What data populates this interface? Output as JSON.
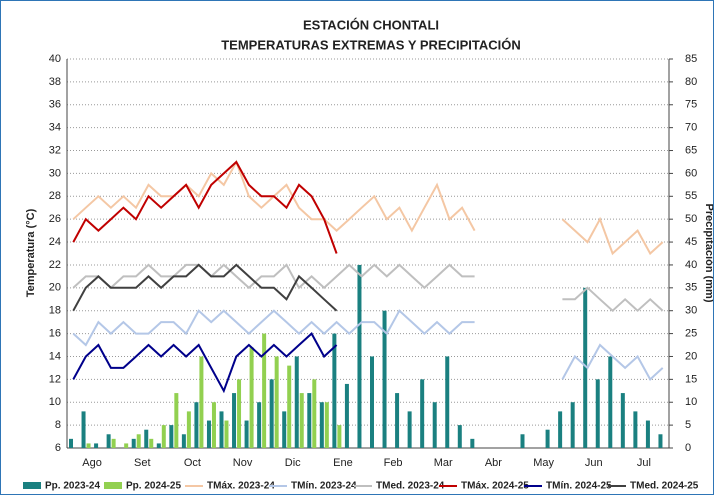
{
  "chart_data": {
    "type": "combo",
    "title": "ESTACIÓN CHONTALI",
    "subtitle": "TEMPERATURAS EXTREMAS Y PRECIPITACIÓN",
    "y_label": "Temperatura (°C)",
    "y2_label": "Precipitación (mm)",
    "categories": [
      "Ago",
      null,
      null,
      null,
      "Set",
      null,
      null,
      null,
      "Oct",
      null,
      null,
      null,
      "Nov",
      null,
      null,
      null,
      "Dic",
      null,
      null,
      null,
      "Ene",
      null,
      null,
      null,
      "Feb",
      null,
      null,
      null,
      "Mar",
      null,
      null,
      null,
      "Abr",
      null,
      null,
      null,
      "May",
      null,
      null,
      null,
      "Jun",
      null,
      null,
      null,
      "Jul",
      null,
      null,
      null
    ],
    "ylim": [
      6,
      40
    ],
    "yticks": [
      6,
      8,
      10,
      12,
      14,
      16,
      18,
      20,
      22,
      24,
      26,
      28,
      30,
      32,
      34,
      36,
      38,
      40
    ],
    "y2lim": [
      0,
      85
    ],
    "y2ticks": [
      0,
      5,
      10,
      15,
      20,
      25,
      30,
      35,
      40,
      45,
      50,
      55,
      60,
      65,
      70,
      75,
      80,
      85
    ],
    "grid": true,
    "series": [
      {
        "name": "Pp. 2023-24",
        "kind": "bar",
        "axis": "y2",
        "color": "#1a8080",
        "values": [
          2,
          8,
          1,
          3,
          0,
          2,
          4,
          1,
          5,
          3,
          10,
          6,
          8,
          12,
          6,
          10,
          15,
          8,
          20,
          12,
          10,
          25,
          14,
          40,
          20,
          30,
          12,
          8,
          15,
          10,
          20,
          5,
          2,
          0,
          0,
          0,
          3,
          0,
          4,
          8,
          10,
          35,
          15,
          20,
          12,
          8,
          6,
          3
        ]
      },
      {
        "name": "Pp. 2024-25",
        "kind": "bar",
        "axis": "y2",
        "color": "#92d050",
        "values": [
          0,
          1,
          0,
          2,
          1,
          3,
          2,
          5,
          12,
          8,
          20,
          10,
          6,
          15,
          22,
          25,
          20,
          18,
          12,
          15,
          10,
          5,
          null,
          null,
          null,
          null,
          null,
          null,
          null,
          null,
          null,
          null,
          null,
          null,
          null,
          null,
          null,
          null,
          null,
          null,
          null,
          null,
          null,
          null,
          null,
          null,
          null,
          null
        ]
      },
      {
        "name": "TMáx. 2023-24",
        "kind": "line",
        "color": "#f4c7a4",
        "values": [
          26,
          27,
          28,
          27,
          28,
          27,
          29,
          28,
          28,
          29,
          28,
          30,
          29,
          31,
          28,
          27,
          28,
          29,
          27,
          26,
          26,
          25,
          26,
          27,
          28,
          26,
          27,
          25,
          27,
          29,
          26,
          27,
          25,
          null,
          null,
          null,
          null,
          null,
          null,
          26,
          25,
          24,
          26,
          23,
          24,
          25,
          23,
          24
        ]
      },
      {
        "name": "TMín. 2023-24",
        "kind": "line",
        "color": "#b4c7e7",
        "values": [
          16,
          15,
          17,
          16,
          17,
          16,
          16,
          17,
          17,
          16,
          18,
          17,
          18,
          17,
          16,
          17,
          18,
          17,
          16,
          17,
          16,
          17,
          16,
          17,
          17,
          16,
          18,
          17,
          16,
          17,
          16,
          17,
          17,
          null,
          null,
          null,
          null,
          null,
          null,
          12,
          14,
          13,
          15,
          14,
          13,
          14,
          12,
          13
        ]
      },
      {
        "name": "TMed. 2023-24",
        "kind": "line",
        "color": "#bfbfbf",
        "values": [
          20,
          21,
          21,
          20,
          21,
          21,
          22,
          21,
          21,
          22,
          22,
          21,
          22,
          21,
          20,
          21,
          21,
          22,
          20,
          21,
          20,
          21,
          22,
          21,
          22,
          21,
          22,
          21,
          20,
          21,
          22,
          21,
          21,
          null,
          null,
          null,
          null,
          null,
          null,
          19,
          19,
          20,
          19,
          18,
          19,
          18,
          19,
          18
        ]
      },
      {
        "name": "TMáx. 2024-25",
        "kind": "line",
        "color": "#c00000",
        "values": [
          24,
          26,
          25,
          26,
          27,
          26,
          28,
          27,
          28,
          29,
          27,
          29,
          30,
          31,
          29,
          28,
          28,
          27,
          29,
          28,
          26,
          23,
          null,
          null,
          null,
          null,
          null,
          null,
          null,
          null,
          null,
          null,
          null,
          null,
          null,
          null,
          null,
          null,
          null,
          null,
          null,
          null,
          null,
          null,
          null,
          null,
          null,
          null
        ]
      },
      {
        "name": "TMín. 2024-25",
        "kind": "line",
        "color": "#00008b",
        "values": [
          12,
          14,
          15,
          13,
          13,
          14,
          15,
          14,
          15,
          14,
          15,
          13,
          11,
          14,
          15,
          14,
          15,
          14,
          15,
          16,
          14,
          15,
          null,
          null,
          null,
          null,
          null,
          null,
          null,
          null,
          null,
          null,
          null,
          null,
          null,
          null,
          null,
          null,
          null,
          null,
          null,
          null,
          null,
          null,
          null,
          null,
          null,
          null
        ]
      },
      {
        "name": "TMed. 2024-25",
        "kind": "line",
        "color": "#404040",
        "values": [
          18,
          20,
          21,
          20,
          20,
          20,
          21,
          20,
          21,
          21,
          22,
          21,
          21,
          22,
          21,
          20,
          20,
          19,
          21,
          20,
          19,
          18,
          null,
          null,
          null,
          null,
          null,
          null,
          null,
          null,
          null,
          null,
          null,
          null,
          null,
          null,
          null,
          null,
          null,
          null,
          null,
          null,
          null,
          null,
          null,
          null,
          null,
          null
        ]
      }
    ]
  }
}
